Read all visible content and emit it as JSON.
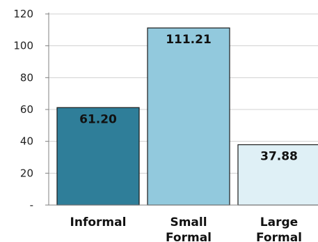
{
  "chart_data": {
    "type": "bar",
    "title": "",
    "xlabel": "",
    "ylabel": "",
    "categories": [
      [
        "Informal"
      ],
      [
        "Small",
        "Formal"
      ],
      [
        "Large",
        "Formal"
      ]
    ],
    "values": [
      61.2,
      111.21,
      37.88
    ],
    "value_labels": [
      "61.20",
      "111.21",
      "37.88"
    ],
    "ylim": [
      0,
      120
    ],
    "yticks": [
      {
        "value": 0,
        "label": "-"
      },
      {
        "value": 20,
        "label": "20"
      },
      {
        "value": 40,
        "label": "40"
      },
      {
        "value": 60,
        "label": "60"
      },
      {
        "value": 80,
        "label": "80"
      },
      {
        "value": 100,
        "label": "100"
      },
      {
        "value": 120,
        "label": "120"
      }
    ],
    "grid": true,
    "legend": "none",
    "colors": {
      "bar_fills": [
        "#2f7e99",
        "#92c9dd",
        "#dff0f6"
      ],
      "bar_stroke": "#1a1a1a",
      "grid": "#d0d0d0",
      "axis": "#808080"
    }
  }
}
